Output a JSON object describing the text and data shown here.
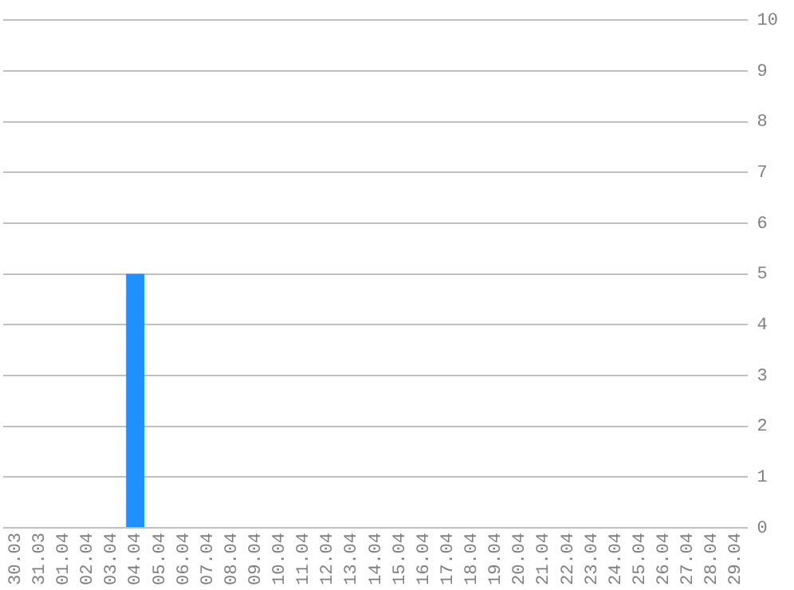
{
  "chart_data": {
    "type": "bar",
    "categories": [
      "30.03",
      "31.03",
      "01.04",
      "02.04",
      "03.04",
      "04.04",
      "05.04",
      "06.04",
      "07.04",
      "08.04",
      "09.04",
      "10.04",
      "11.04",
      "12.04",
      "13.04",
      "14.04",
      "15.04",
      "16.04",
      "17.04",
      "18.04",
      "19.04",
      "20.04",
      "21.04",
      "22.04",
      "23.04",
      "24.04",
      "25.04",
      "26.04",
      "27.04",
      "28.04",
      "29.04"
    ],
    "values": [
      0,
      0,
      0,
      0,
      0,
      5,
      0,
      0,
      0,
      0,
      0,
      0,
      0,
      0,
      0,
      0,
      0,
      0,
      0,
      0,
      0,
      0,
      0,
      0,
      0,
      0,
      0,
      0,
      0,
      0,
      0
    ],
    "color": "#1e90ff",
    "ylim": [
      0,
      10
    ],
    "yticks": [
      0,
      1,
      2,
      3,
      4,
      5,
      6,
      7,
      8,
      9,
      10
    ],
    "grid": "y"
  }
}
